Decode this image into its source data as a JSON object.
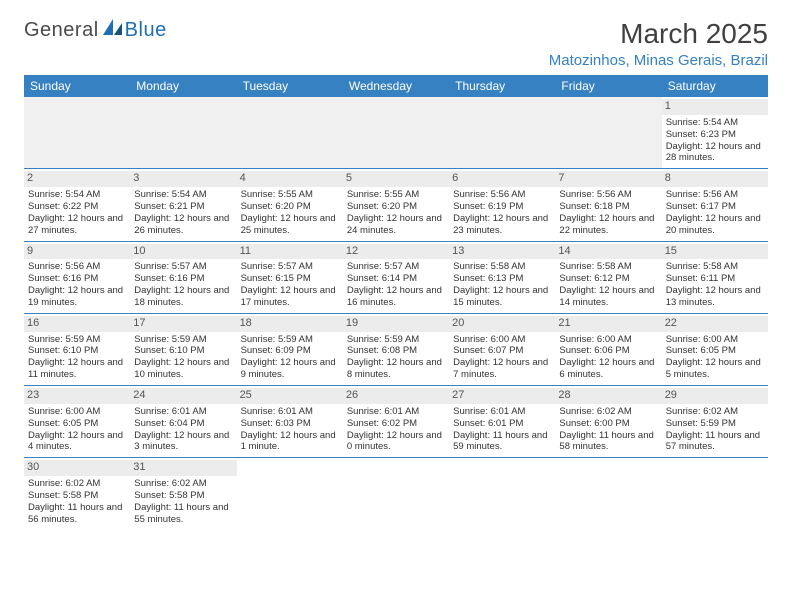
{
  "logo": {
    "part1": "General",
    "part2": "Blue"
  },
  "title": "March 2025",
  "location": "Matozinhos, Minas Gerais, Brazil",
  "colors": {
    "header_bg": "#3681c1",
    "header_fg": "#ffffff",
    "daynum_bg": "#ececec",
    "border": "#3681c1",
    "location_fg": "#3681c1"
  },
  "weekdays": [
    "Sunday",
    "Monday",
    "Tuesday",
    "Wednesday",
    "Thursday",
    "Friday",
    "Saturday"
  ],
  "leading_blanks": 6,
  "days": [
    {
      "n": 1,
      "sunrise": "5:54 AM",
      "sunset": "6:23 PM",
      "daylight": "12 hours and 28 minutes."
    },
    {
      "n": 2,
      "sunrise": "5:54 AM",
      "sunset": "6:22 PM",
      "daylight": "12 hours and 27 minutes."
    },
    {
      "n": 3,
      "sunrise": "5:54 AM",
      "sunset": "6:21 PM",
      "daylight": "12 hours and 26 minutes."
    },
    {
      "n": 4,
      "sunrise": "5:55 AM",
      "sunset": "6:20 PM",
      "daylight": "12 hours and 25 minutes."
    },
    {
      "n": 5,
      "sunrise": "5:55 AM",
      "sunset": "6:20 PM",
      "daylight": "12 hours and 24 minutes."
    },
    {
      "n": 6,
      "sunrise": "5:56 AM",
      "sunset": "6:19 PM",
      "daylight": "12 hours and 23 minutes."
    },
    {
      "n": 7,
      "sunrise": "5:56 AM",
      "sunset": "6:18 PM",
      "daylight": "12 hours and 22 minutes."
    },
    {
      "n": 8,
      "sunrise": "5:56 AM",
      "sunset": "6:17 PM",
      "daylight": "12 hours and 20 minutes."
    },
    {
      "n": 9,
      "sunrise": "5:56 AM",
      "sunset": "6:16 PM",
      "daylight": "12 hours and 19 minutes."
    },
    {
      "n": 10,
      "sunrise": "5:57 AM",
      "sunset": "6:16 PM",
      "daylight": "12 hours and 18 minutes."
    },
    {
      "n": 11,
      "sunrise": "5:57 AM",
      "sunset": "6:15 PM",
      "daylight": "12 hours and 17 minutes."
    },
    {
      "n": 12,
      "sunrise": "5:57 AM",
      "sunset": "6:14 PM",
      "daylight": "12 hours and 16 minutes."
    },
    {
      "n": 13,
      "sunrise": "5:58 AM",
      "sunset": "6:13 PM",
      "daylight": "12 hours and 15 minutes."
    },
    {
      "n": 14,
      "sunrise": "5:58 AM",
      "sunset": "6:12 PM",
      "daylight": "12 hours and 14 minutes."
    },
    {
      "n": 15,
      "sunrise": "5:58 AM",
      "sunset": "6:11 PM",
      "daylight": "12 hours and 13 minutes."
    },
    {
      "n": 16,
      "sunrise": "5:59 AM",
      "sunset": "6:10 PM",
      "daylight": "12 hours and 11 minutes."
    },
    {
      "n": 17,
      "sunrise": "5:59 AM",
      "sunset": "6:10 PM",
      "daylight": "12 hours and 10 minutes."
    },
    {
      "n": 18,
      "sunrise": "5:59 AM",
      "sunset": "6:09 PM",
      "daylight": "12 hours and 9 minutes."
    },
    {
      "n": 19,
      "sunrise": "5:59 AM",
      "sunset": "6:08 PM",
      "daylight": "12 hours and 8 minutes."
    },
    {
      "n": 20,
      "sunrise": "6:00 AM",
      "sunset": "6:07 PM",
      "daylight": "12 hours and 7 minutes."
    },
    {
      "n": 21,
      "sunrise": "6:00 AM",
      "sunset": "6:06 PM",
      "daylight": "12 hours and 6 minutes."
    },
    {
      "n": 22,
      "sunrise": "6:00 AM",
      "sunset": "6:05 PM",
      "daylight": "12 hours and 5 minutes."
    },
    {
      "n": 23,
      "sunrise": "6:00 AM",
      "sunset": "6:05 PM",
      "daylight": "12 hours and 4 minutes."
    },
    {
      "n": 24,
      "sunrise": "6:01 AM",
      "sunset": "6:04 PM",
      "daylight": "12 hours and 3 minutes."
    },
    {
      "n": 25,
      "sunrise": "6:01 AM",
      "sunset": "6:03 PM",
      "daylight": "12 hours and 1 minute."
    },
    {
      "n": 26,
      "sunrise": "6:01 AM",
      "sunset": "6:02 PM",
      "daylight": "12 hours and 0 minutes."
    },
    {
      "n": 27,
      "sunrise": "6:01 AM",
      "sunset": "6:01 PM",
      "daylight": "11 hours and 59 minutes."
    },
    {
      "n": 28,
      "sunrise": "6:02 AM",
      "sunset": "6:00 PM",
      "daylight": "11 hours and 58 minutes."
    },
    {
      "n": 29,
      "sunrise": "6:02 AM",
      "sunset": "5:59 PM",
      "daylight": "11 hours and 57 minutes."
    },
    {
      "n": 30,
      "sunrise": "6:02 AM",
      "sunset": "5:58 PM",
      "daylight": "11 hours and 56 minutes."
    },
    {
      "n": 31,
      "sunrise": "6:02 AM",
      "sunset": "5:58 PM",
      "daylight": "11 hours and 55 minutes."
    }
  ],
  "labels": {
    "sunrise": "Sunrise:",
    "sunset": "Sunset:",
    "daylight": "Daylight:"
  }
}
